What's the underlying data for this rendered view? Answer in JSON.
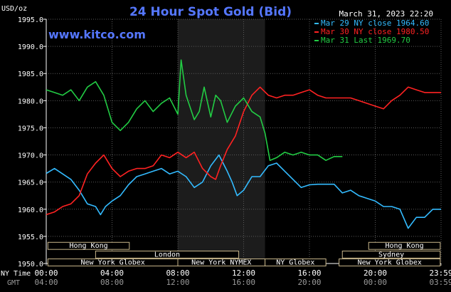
{
  "chart_data": {
    "type": "line",
    "title": "24 Hour Spot Gold (Bid)",
    "watermark": "www.kitco.com",
    "currency_label": "USD/oz",
    "timestamp": "March 31, 2023 22:20",
    "ylim": [
      1950.0,
      1995.0
    ],
    "y_ticks": [
      "1995.0",
      "1990.0",
      "1985.0",
      "1980.0",
      "1975.0",
      "1970.0",
      "1965.0",
      "1960.0",
      "1955.0",
      "1950.0"
    ],
    "y_tick_values": [
      1995,
      1990,
      1985,
      1980,
      1975,
      1970,
      1965,
      1960,
      1955,
      1950
    ],
    "xlim": [
      0,
      24
    ],
    "x_tick_hours": [
      0,
      4,
      8,
      12,
      16,
      20,
      24
    ],
    "x_label_ny": "NY Time",
    "x_label_gmt": "GMT",
    "x_ticks_ny": [
      "00:00",
      "04:00",
      "08:00",
      "12:00",
      "16:00",
      "20:00",
      "23:59"
    ],
    "x_ticks_gmt": [
      "04:00",
      "08:00",
      "12:00",
      "16:00",
      "20:00",
      "00:00",
      "03:59"
    ],
    "grid": true,
    "legend_position": "top-right",
    "highlight_band": [
      8,
      13.3
    ],
    "series": [
      {
        "name": "Mar 29 NY close 1964.60",
        "color": "#33bbff",
        "x": [
          0,
          0.5,
          1,
          1.5,
          2,
          2.5,
          3,
          3.3,
          3.6,
          4,
          4.5,
          5,
          5.5,
          6,
          6.5,
          7,
          7.5,
          8,
          8.5,
          9,
          9.5,
          10,
          10.5,
          11,
          11.3,
          11.6,
          12,
          12.5,
          13,
          13.5,
          14,
          14.5,
          15,
          15.5,
          16,
          16.5,
          17,
          17.5,
          18,
          18.5,
          19,
          19.5,
          20,
          20.5,
          21,
          21.5,
          22,
          22.5,
          23,
          23.5,
          24
        ],
        "values": [
          1966.6,
          1967.5,
          1966.5,
          1965.5,
          1963.5,
          1961.0,
          1960.5,
          1959.0,
          1960.5,
          1961.5,
          1962.5,
          1964.5,
          1966.0,
          1966.5,
          1967.0,
          1967.5,
          1966.5,
          1967.0,
          1966.0,
          1964.0,
          1965.0,
          1968.0,
          1970.0,
          1967.0,
          1965.0,
          1962.5,
          1963.5,
          1966.0,
          1966.0,
          1968.0,
          1968.5,
          1967.0,
          1965.5,
          1964.0,
          1964.5,
          1964.6,
          1964.6,
          1964.6,
          1963.0,
          1963.5,
          1962.5,
          1962.0,
          1961.5,
          1960.5,
          1960.5,
          1960.0,
          1956.5,
          1958.5,
          1958.5,
          1960.0,
          1960.0
        ]
      },
      {
        "name": "Mar 30 NY close 1980.50",
        "color": "#ff2222",
        "x": [
          0,
          0.5,
          1,
          1.5,
          2,
          2.5,
          3,
          3.5,
          4,
          4.5,
          5,
          5.5,
          6,
          6.5,
          7,
          7.5,
          8,
          8.5,
          9,
          9.5,
          10,
          10.3,
          10.6,
          11,
          11.5,
          12,
          12.5,
          13,
          13.5,
          14,
          14.5,
          15,
          15.5,
          16,
          16.5,
          17,
          17.5,
          18,
          18.5,
          19,
          19.5,
          20,
          20.5,
          21,
          21.5,
          22,
          22.5,
          23,
          23.5,
          24
        ],
        "values": [
          1959.0,
          1959.5,
          1960.5,
          1961.0,
          1962.5,
          1966.5,
          1968.5,
          1970.0,
          1967.5,
          1966.0,
          1967.0,
          1967.5,
          1967.5,
          1968.0,
          1970.0,
          1969.5,
          1970.5,
          1969.5,
          1970.5,
          1967.5,
          1966.0,
          1965.5,
          1968.0,
          1971.0,
          1973.5,
          1978.0,
          1981.0,
          1982.5,
          1981.0,
          1980.5,
          1981.0,
          1981.0,
          1981.5,
          1982.0,
          1981.0,
          1980.5,
          1980.5,
          1980.5,
          1980.5,
          1980.0,
          1979.5,
          1979.0,
          1978.5,
          1980.0,
          1981.0,
          1982.5,
          1982.0,
          1981.5,
          1981.5,
          1981.5
        ]
      },
      {
        "name": "Mar 31 Last 1969.70",
        "color": "#22cc44",
        "x": [
          0,
          0.5,
          1,
          1.5,
          2,
          2.5,
          3,
          3.5,
          4,
          4.5,
          5,
          5.5,
          6,
          6.5,
          7,
          7.5,
          8,
          8.2,
          8.5,
          9,
          9.3,
          9.6,
          10,
          10.3,
          10.6,
          11,
          11.5,
          12,
          12.5,
          13,
          13.3,
          13.6,
          14,
          14.5,
          15,
          15.5,
          16,
          16.5,
          17,
          17.5,
          18
        ],
        "values": [
          1982.0,
          1981.5,
          1981.0,
          1982.0,
          1980.0,
          1982.5,
          1983.5,
          1981.0,
          1976.0,
          1974.5,
          1976.0,
          1978.5,
          1980.0,
          1978.0,
          1979.5,
          1980.5,
          1977.5,
          1987.5,
          1981.0,
          1976.5,
          1978.0,
          1982.5,
          1977.0,
          1981.0,
          1980.0,
          1976.0,
          1979.0,
          1980.5,
          1978.0,
          1977.0,
          1974.0,
          1969.0,
          1969.5,
          1970.5,
          1970.0,
          1970.5,
          1970.0,
          1970.0,
          1969.0,
          1969.7,
          1969.7
        ]
      }
    ],
    "sessions": [
      {
        "label": "Hong Kong",
        "start": 0.1,
        "end": 5.05
      },
      {
        "label": "Hong Kong",
        "start": 19.6,
        "end": 23.95
      },
      {
        "label": "London",
        "start": 3.0,
        "end": 11.7
      },
      {
        "label": "Sydney",
        "start": 18.0,
        "end": 23.95
      },
      {
        "label": "New York Globex",
        "start": 0.1,
        "end": 8.0
      },
      {
        "label": "New York NYMEX",
        "start": 8.0,
        "end": 13.3
      },
      {
        "label": "NY Globex",
        "start": 13.3,
        "end": 17.0
      },
      {
        "label": "New York Globex",
        "start": 17.8,
        "end": 23.95
      }
    ]
  }
}
